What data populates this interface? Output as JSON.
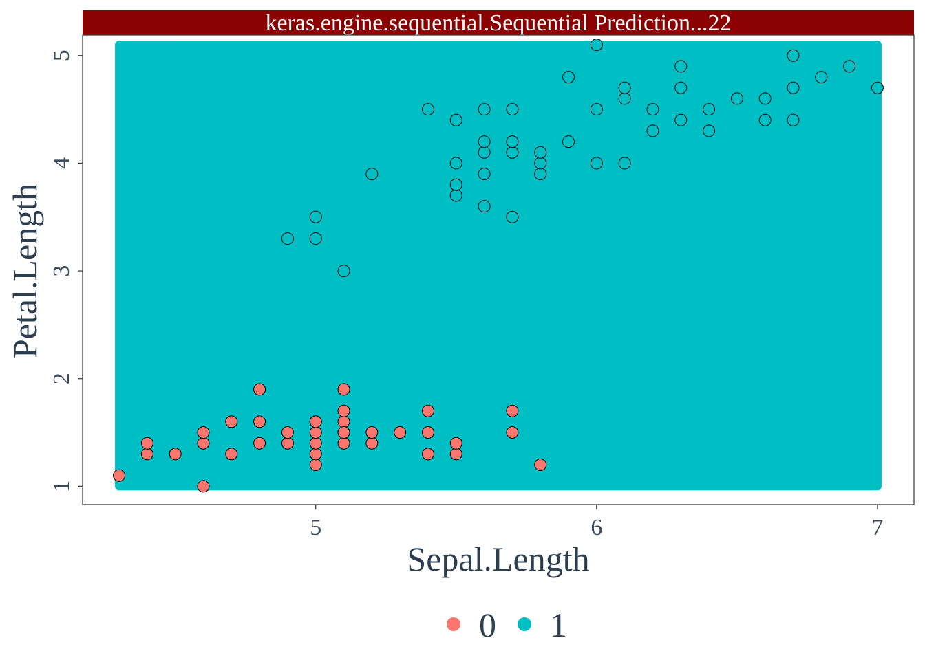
{
  "chart_data": {
    "type": "scatter",
    "title": "keras.engine.sequential.Sequential  Prediction...22",
    "xlabel": "Sepal.Length",
    "ylabel": "Petal.Length",
    "xlim": [
      4.17,
      7.13
    ],
    "ylim": [
      0.83,
      5.19
    ],
    "x_ticks": [
      5,
      6,
      7
    ],
    "y_ticks": [
      1,
      2,
      3,
      4,
      5
    ],
    "x_tick_labels": [
      "5",
      "6",
      "7"
    ],
    "y_tick_labels": [
      "1",
      "2",
      "3",
      "4",
      "5"
    ],
    "grid": false,
    "legend_position": "bottom",
    "legend": [
      {
        "label": "0",
        "color": "#F8766D"
      },
      {
        "label": "1",
        "color": "#00BFC4"
      }
    ],
    "prediction_region": {
      "class": "1",
      "x_range": [
        4.3,
        7.0
      ],
      "y_range": [
        1.0,
        5.1
      ],
      "color": "#00BFC4"
    },
    "series": [
      {
        "name": "0",
        "color": "#F8766D",
        "x": [
          4.3,
          4.4,
          4.4,
          4.5,
          4.6,
          4.6,
          4.6,
          4.7,
          4.7,
          4.8,
          4.8,
          4.8,
          4.9,
          4.9,
          5.0,
          5.0,
          5.0,
          5.0,
          5.0,
          5.0,
          5.1,
          5.1,
          5.1,
          5.1,
          5.1,
          5.1,
          5.2,
          5.2,
          5.3,
          5.4,
          5.4,
          5.4,
          5.5,
          5.5,
          5.7,
          5.7,
          5.8
        ],
        "y": [
          1.1,
          1.3,
          1.4,
          1.3,
          1.0,
          1.4,
          1.5,
          1.3,
          1.6,
          1.4,
          1.6,
          1.9,
          1.4,
          1.5,
          1.2,
          1.3,
          1.4,
          1.5,
          1.6,
          1.6,
          1.4,
          1.5,
          1.6,
          1.7,
          1.9,
          1.5,
          1.4,
          1.5,
          1.5,
          1.3,
          1.5,
          1.7,
          1.3,
          1.4,
          1.5,
          1.7,
          1.2
        ]
      },
      {
        "name": "1",
        "color": "#00BFC4",
        "x": [
          4.9,
          5.0,
          5.0,
          5.1,
          5.2,
          5.4,
          5.5,
          5.5,
          5.5,
          5.5,
          5.6,
          5.6,
          5.6,
          5.6,
          5.6,
          5.7,
          5.7,
          5.7,
          5.7,
          5.8,
          5.8,
          5.8,
          5.9,
          5.9,
          6.0,
          6.0,
          6.0,
          6.1,
          6.1,
          6.1,
          6.2,
          6.2,
          6.3,
          6.3,
          6.3,
          6.4,
          6.4,
          6.5,
          6.6,
          6.6,
          6.7,
          6.7,
          6.7,
          6.8,
          6.9,
          7.0
        ],
        "y": [
          3.3,
          3.3,
          3.5,
          3.0,
          3.9,
          4.5,
          3.7,
          3.8,
          4.0,
          4.4,
          3.6,
          3.9,
          4.1,
          4.2,
          4.5,
          3.5,
          4.1,
          4.2,
          4.5,
          3.9,
          4.0,
          4.1,
          4.2,
          4.8,
          4.0,
          4.5,
          5.1,
          4.0,
          4.6,
          4.7,
          4.3,
          4.5,
          4.4,
          4.7,
          4.9,
          4.3,
          4.5,
          4.6,
          4.4,
          4.6,
          4.4,
          4.7,
          5.0,
          4.8,
          4.9,
          4.7
        ]
      }
    ]
  }
}
